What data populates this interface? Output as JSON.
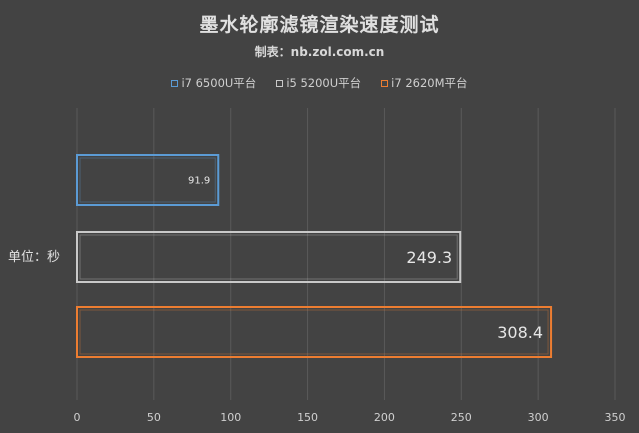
{
  "chart_data": {
    "type": "bar",
    "orientation": "horizontal",
    "title": "墨水轮廓滤镜渲染速度测试",
    "subtitle": "制表：nb.zol.com.cn",
    "ylabel": "单位：秒",
    "xlabel": "",
    "xlim": [
      0,
      350
    ],
    "xticks": [
      0,
      50,
      100,
      150,
      200,
      250,
      300,
      350
    ],
    "grid": true,
    "legend_position": "top",
    "series": [
      {
        "name": "i7 6500U平台",
        "value": 91.9,
        "label": "91.9",
        "color": "#5b9bd5"
      },
      {
        "name": "i5 5200U平台",
        "value": 249.3,
        "label": "249.3",
        "color": "#c9c9c9"
      },
      {
        "name": "i7 2620M平台",
        "value": 308.4,
        "label": "308.4",
        "color": "#ed7d31"
      }
    ]
  }
}
